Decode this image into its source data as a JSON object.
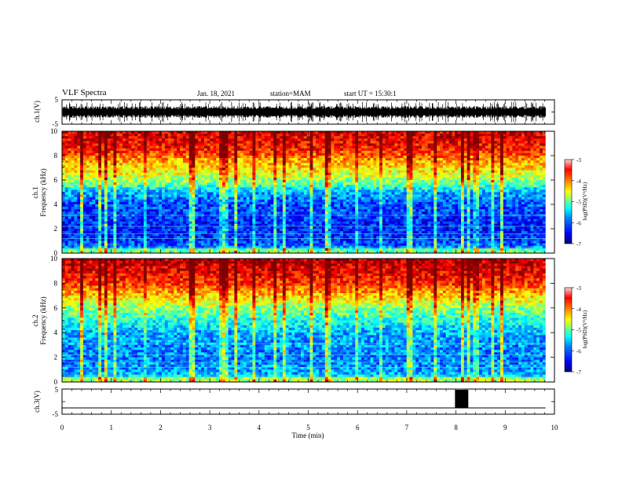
{
  "header": {
    "title": "VLF Spectra",
    "date": "Jan. 18, 2021",
    "station": "station=MAM",
    "start": "start  UT =   15:30:1"
  },
  "colors": {
    "spectrogram_scale": [
      "#00007f",
      "#0000ff",
      "#007fff",
      "#00ffff",
      "#7fff7f",
      "#ffff00",
      "#ff7f00",
      "#ff0000",
      "#7f0000"
    ],
    "waveform": "#000000",
    "axis": "#000000"
  },
  "chart_data": [
    {
      "type": "line",
      "panel": "ch1-waveform",
      "ylabel": "ch.1(V)",
      "ylim": [
        -5,
        5
      ],
      "yticks": [
        "5",
        "-5"
      ],
      "xlim": [
        0,
        10
      ],
      "description_values": {
        "typical_amplitude_v": [
          -3.5,
          3.5
        ]
      }
    },
    {
      "type": "heatmap",
      "panel": "ch1-spectrogram",
      "ylabel": "ch.1\nFrequency (kHz)",
      "ylabel_line1": "ch.1",
      "ylabel_line2": "Frequency (kHz)",
      "ylim": [
        0,
        10
      ],
      "yticks": [
        "0",
        "2",
        "4",
        "6",
        "8",
        "10"
      ],
      "xlim": [
        0,
        9.82
      ],
      "colorbar": {
        "label": "log(PSD)(V²/Hz)",
        "range": [
          -7,
          -3
        ],
        "ticks": [
          "-3",
          "-4",
          "-5",
          "-6",
          "-7"
        ]
      },
      "profile_khz_logpsd": [
        [
          0,
          -5.8
        ],
        [
          1,
          -6.3
        ],
        [
          2,
          -6.4
        ],
        [
          4,
          -6.2
        ],
        [
          5,
          -5.8
        ],
        [
          5.8,
          -5.0
        ],
        [
          6.5,
          -4.6
        ],
        [
          7.5,
          -4.2
        ],
        [
          8.5,
          -3.6
        ],
        [
          10,
          -3.3
        ]
      ]
    },
    {
      "type": "heatmap",
      "panel": "ch2-spectrogram",
      "ylabel": "ch.2\nFrequency (kHz)",
      "ylabel_line1": "ch.2",
      "ylabel_line2": "Frequency (kHz)",
      "ylim": [
        0,
        10
      ],
      "yticks": [
        "0",
        "2",
        "4",
        "6",
        "8",
        "10"
      ],
      "xlim": [
        0,
        9.82
      ],
      "colorbar": {
        "label": "log(PSD)(V²/Hz)",
        "range": [
          -7,
          -3
        ],
        "ticks": [
          "-3",
          "-4",
          "-5",
          "-6",
          "-7"
        ]
      },
      "profile_khz_logpsd": [
        [
          0,
          -5.6
        ],
        [
          1,
          -5.9
        ],
        [
          2,
          -6.0
        ],
        [
          4,
          -5.8
        ],
        [
          5,
          -5.4
        ],
        [
          6,
          -4.9
        ],
        [
          7,
          -4.3
        ],
        [
          8,
          -3.7
        ],
        [
          9,
          -3.4
        ],
        [
          10,
          -3.2
        ]
      ]
    },
    {
      "type": "line",
      "panel": "ch3-signal",
      "ylabel": "ch.3(V)",
      "ylim": [
        -5,
        5
      ],
      "yticks": [
        "5",
        "-5"
      ],
      "xlabel": "Time (min)",
      "xlim": [
        0,
        10
      ],
      "xticks": [
        "0",
        "1",
        "2",
        "3",
        "4",
        "5",
        "6",
        "7",
        "8",
        "9",
        "10"
      ],
      "baseline_v": -2.5,
      "pulse": {
        "start_min": 7.98,
        "end_min": 8.25,
        "low_v": -2.5,
        "high_v": 5
      }
    }
  ]
}
